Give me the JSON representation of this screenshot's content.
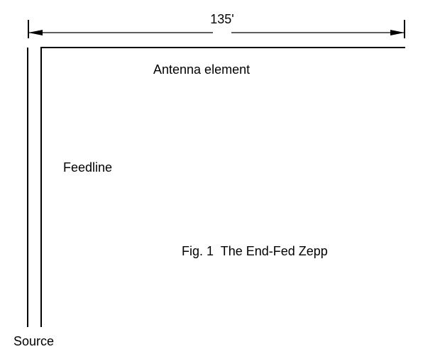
{
  "diagram": {
    "dimension_label": "135'",
    "antenna_label": "Antenna element",
    "feedline_label": "Feedline",
    "caption": "Fig. 1  The End-Fed Zepp",
    "source_label": "Source"
  }
}
